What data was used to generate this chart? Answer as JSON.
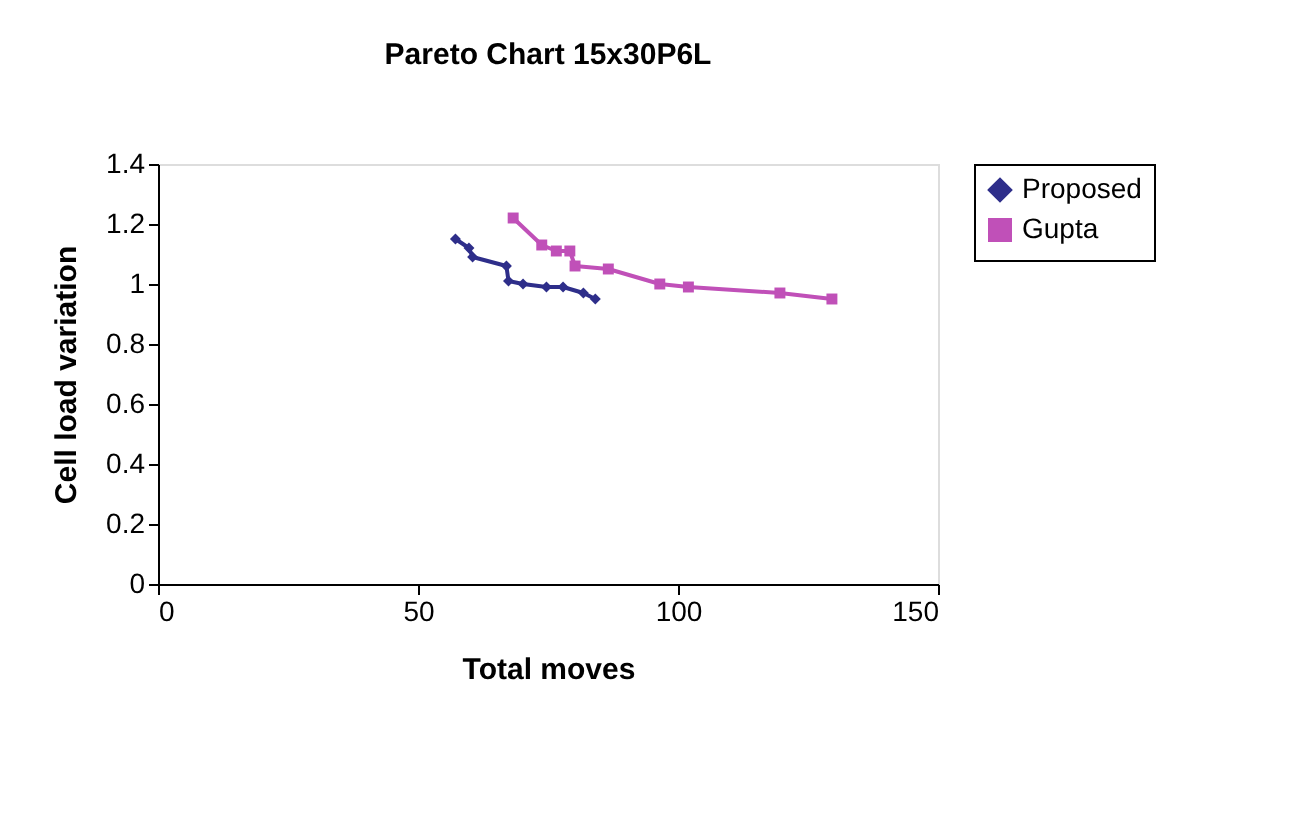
{
  "chart_data": {
    "type": "line",
    "title": "Pareto Chart 15x30P6L",
    "xlabel": "Total moves",
    "ylabel": "Cell load variation",
    "xlim": [
      0,
      150
    ],
    "xticks": [
      0,
      50,
      100,
      150
    ],
    "ylim": [
      0,
      1.4
    ],
    "yticks": [
      0,
      0.2,
      0.4,
      0.6,
      0.8,
      1,
      1.2,
      1.4
    ],
    "grid": false,
    "legend": "right",
    "series": [
      {
        "name": "Proposed",
        "color": "#2e2e8a",
        "marker": "diamond",
        "x": [
          57.2,
          59.8,
          60.5,
          67.0,
          67.4,
          70.2,
          74.7,
          77.9,
          81.8,
          84.1
        ],
        "values": [
          1.15,
          1.12,
          1.09,
          1.06,
          1.01,
          1.0,
          0.99,
          0.99,
          0.97,
          0.95
        ]
      },
      {
        "name": "Gupta",
        "color": "#c050b8",
        "marker": "square",
        "x": [
          68.3,
          73.8,
          76.6,
          79.2,
          80.2,
          86.6,
          96.5,
          102.0,
          119.6,
          129.6
        ],
        "values": [
          1.22,
          1.13,
          1.11,
          1.11,
          1.06,
          1.05,
          1.0,
          0.99,
          0.97,
          0.95
        ]
      }
    ]
  }
}
